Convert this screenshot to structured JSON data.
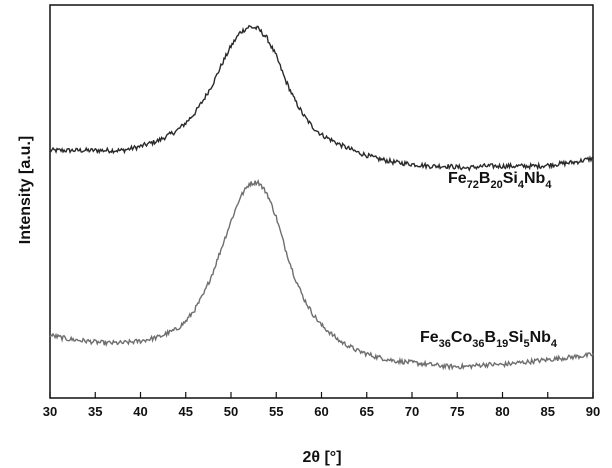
{
  "chart_data": {
    "type": "line",
    "xlabel": "2θ [°]",
    "ylabel": "Intensity [a.u.]",
    "xlim": [
      30,
      90
    ],
    "xticks": [
      30,
      35,
      40,
      45,
      50,
      55,
      60,
      65,
      70,
      75,
      80,
      85,
      90
    ],
    "grid": false,
    "legend": "inline labels to the right of each curve",
    "y_units": "arbitrary (relative intensity, 0 = bottom of plot, 1 = top of plot)",
    "series": [
      {
        "name": "Fe72B20Si4Nb4",
        "label_parts": [
          {
            "t": "Fe",
            "sub": false
          },
          {
            "t": "72",
            "sub": true
          },
          {
            "t": "B",
            "sub": false
          },
          {
            "t": "20",
            "sub": true
          },
          {
            "t": "Si",
            "sub": false
          },
          {
            "t": "4",
            "sub": true
          },
          {
            "t": "Nb",
            "sub": false
          },
          {
            "t": "4",
            "sub": true
          }
        ],
        "color": "#2a2a2a",
        "x": [
          30,
          32,
          34,
          36,
          38,
          40,
          42,
          44,
          45,
          46,
          47,
          48,
          49,
          50,
          51,
          52,
          53,
          54,
          55,
          56,
          57,
          58,
          59,
          60,
          62,
          64,
          66,
          68,
          70,
          72,
          74,
          76,
          78,
          80,
          82,
          84,
          86,
          88,
          90
        ],
        "y": [
          0.63,
          0.63,
          0.63,
          0.63,
          0.63,
          0.64,
          0.655,
          0.68,
          0.7,
          0.725,
          0.76,
          0.8,
          0.85,
          0.895,
          0.93,
          0.945,
          0.94,
          0.915,
          0.87,
          0.81,
          0.76,
          0.72,
          0.69,
          0.67,
          0.645,
          0.625,
          0.61,
          0.6,
          0.595,
          0.59,
          0.59,
          0.585,
          0.59,
          0.59,
          0.59,
          0.59,
          0.595,
          0.6,
          0.61
        ]
      },
      {
        "name": "Fe36Co36B19Si5Nb4",
        "label_parts": [
          {
            "t": "Fe",
            "sub": false
          },
          {
            "t": "36",
            "sub": true
          },
          {
            "t": "Co",
            "sub": false
          },
          {
            "t": "36",
            "sub": true
          },
          {
            "t": "B",
            "sub": false
          },
          {
            "t": "19",
            "sub": true
          },
          {
            "t": "Si",
            "sub": false
          },
          {
            "t": "5",
            "sub": true
          },
          {
            "t": "Nb",
            "sub": false
          },
          {
            "t": "4",
            "sub": true
          }
        ],
        "color": "#6e6e6e",
        "x": [
          30,
          32,
          34,
          36,
          38,
          40,
          42,
          44,
          45,
          46,
          47,
          48,
          49,
          50,
          51,
          52,
          53,
          54,
          55,
          56,
          57,
          58,
          59,
          60,
          62,
          64,
          66,
          68,
          70,
          72,
          74,
          76,
          78,
          80,
          82,
          84,
          86,
          88,
          90
        ],
        "y": [
          0.16,
          0.15,
          0.145,
          0.14,
          0.14,
          0.145,
          0.155,
          0.175,
          0.195,
          0.225,
          0.265,
          0.32,
          0.385,
          0.45,
          0.51,
          0.545,
          0.55,
          0.52,
          0.46,
          0.38,
          0.31,
          0.255,
          0.215,
          0.185,
          0.145,
          0.12,
          0.105,
          0.095,
          0.09,
          0.085,
          0.08,
          0.08,
          0.085,
          0.085,
          0.09,
          0.095,
          0.1,
          0.105,
          0.11
        ]
      }
    ]
  }
}
